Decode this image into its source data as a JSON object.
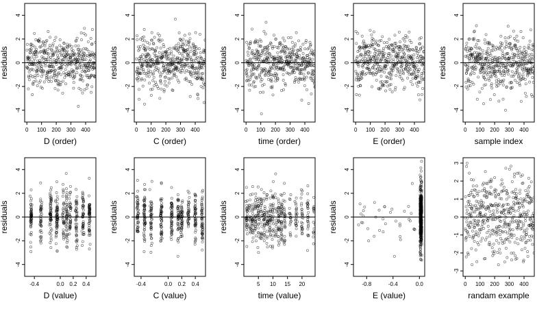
{
  "chart_data": [
    {
      "type": "scatter",
      "xlabel": "D (order)",
      "ylabel": "residuals",
      "xlim": [
        -15,
        470
      ],
      "ylim": [
        -5,
        5
      ],
      "xticks": [
        0,
        100,
        200,
        300,
        400
      ],
      "yticks": [
        -4,
        -2,
        0,
        2,
        4
      ],
      "n": 470,
      "pattern": "order",
      "hline": 0
    },
    {
      "type": "scatter",
      "xlabel": "C (order)",
      "ylabel": "residuals",
      "xlim": [
        -15,
        470
      ],
      "ylim": [
        -5,
        5
      ],
      "xticks": [
        0,
        100,
        200,
        300,
        400
      ],
      "yticks": [
        -4,
        -2,
        0,
        2,
        4
      ],
      "n": 470,
      "pattern": "order",
      "hline": 0
    },
    {
      "type": "scatter",
      "xlabel": "time (order)",
      "ylabel": "residuals",
      "xlim": [
        -15,
        470
      ],
      "ylim": [
        -5,
        5
      ],
      "xticks": [
        0,
        100,
        200,
        300,
        400
      ],
      "yticks": [
        -4,
        -2,
        0,
        2,
        4
      ],
      "n": 470,
      "pattern": "order",
      "hline": 0
    },
    {
      "type": "scatter",
      "xlabel": "E (order)",
      "ylabel": "residuals",
      "xlim": [
        -15,
        470
      ],
      "ylim": [
        -5,
        5
      ],
      "xticks": [
        0,
        100,
        200,
        300,
        400
      ],
      "yticks": [
        -4,
        -2,
        0,
        2,
        4
      ],
      "n": 470,
      "pattern": "order",
      "hline": 0
    },
    {
      "type": "scatter",
      "xlabel": "sample index",
      "ylabel": "residuals",
      "xlim": [
        -15,
        470
      ],
      "ylim": [
        -5,
        5
      ],
      "xticks": [
        0,
        100,
        200,
        300,
        400
      ],
      "yticks": [
        -4,
        -2,
        0,
        2,
        4
      ],
      "n": 470,
      "pattern": "order",
      "hline": 0
    },
    {
      "type": "scatter",
      "xlabel": "D (value)",
      "ylabel": "residuals",
      "xlim": [
        -0.55,
        0.55
      ],
      "ylim": [
        -5,
        5
      ],
      "xticks": [
        -0.4,
        0.0,
        0.2,
        0.4
      ],
      "xticklabels": [
        "-0.4",
        "0.0",
        "0.2",
        "0.4"
      ],
      "yticks": [
        -4,
        -2,
        0,
        2,
        4
      ],
      "n": 470,
      "pattern": "clustered",
      "clusters": [
        -0.45,
        -0.3,
        -0.15,
        -0.05,
        0.05,
        0.1,
        0.15,
        0.25,
        0.35,
        0.45
      ],
      "hline": 0
    },
    {
      "type": "scatter",
      "xlabel": "C (value)",
      "ylabel": "residuals",
      "xlim": [
        -0.5,
        0.55
      ],
      "ylim": [
        -5,
        5
      ],
      "xticks": [
        -0.4,
        0.0,
        0.2,
        0.4
      ],
      "xticklabels": [
        "-0.4",
        "0.0",
        "0.2",
        "0.4"
      ],
      "yticks": [
        -4,
        -2,
        0,
        2,
        4
      ],
      "n": 470,
      "pattern": "clustered",
      "clusters": [
        -0.45,
        -0.35,
        -0.25,
        -0.1,
        0.05,
        0.15,
        0.2,
        0.3,
        0.4,
        0.5
      ],
      "hline": 0
    },
    {
      "type": "scatter",
      "xlabel": "time (value)",
      "ylabel": "residuals",
      "xlim": [
        0,
        24.5
      ],
      "ylim": [
        -5,
        5
      ],
      "xticks": [
        5,
        10,
        15,
        20
      ],
      "yticks": [
        -4,
        -2,
        0,
        2,
        4
      ],
      "n": 470,
      "pattern": "clustered",
      "clusters": [
        1,
        2,
        3,
        4,
        5,
        6,
        7,
        8,
        9,
        10,
        11,
        12,
        13,
        14,
        16,
        18,
        20,
        22,
        24
      ],
      "hline": 0
    },
    {
      "type": "scatter",
      "xlabel": "E (value)",
      "ylabel": "residuals",
      "xlim": [
        -1.0,
        0.08
      ],
      "ylim": [
        -5,
        5
      ],
      "xticks": [
        -0.8,
        -0.4,
        0.0
      ],
      "xticklabels": [
        "-0.8",
        "-0.4",
        "0.0"
      ],
      "yticks": [
        -4,
        -2,
        0,
        2,
        4
      ],
      "n": 470,
      "pattern": "skewed",
      "hline": 0
    },
    {
      "type": "scatter",
      "xlabel": "randam example",
      "ylabel": "",
      "xlim": [
        -15,
        470
      ],
      "ylim": [
        -3.3,
        3.3
      ],
      "xticks": [
        0,
        100,
        200,
        300,
        400
      ],
      "yticks": [
        -3,
        -2,
        -1,
        0,
        1,
        2,
        3
      ],
      "n": 470,
      "pattern": "random",
      "hline": 0
    }
  ]
}
